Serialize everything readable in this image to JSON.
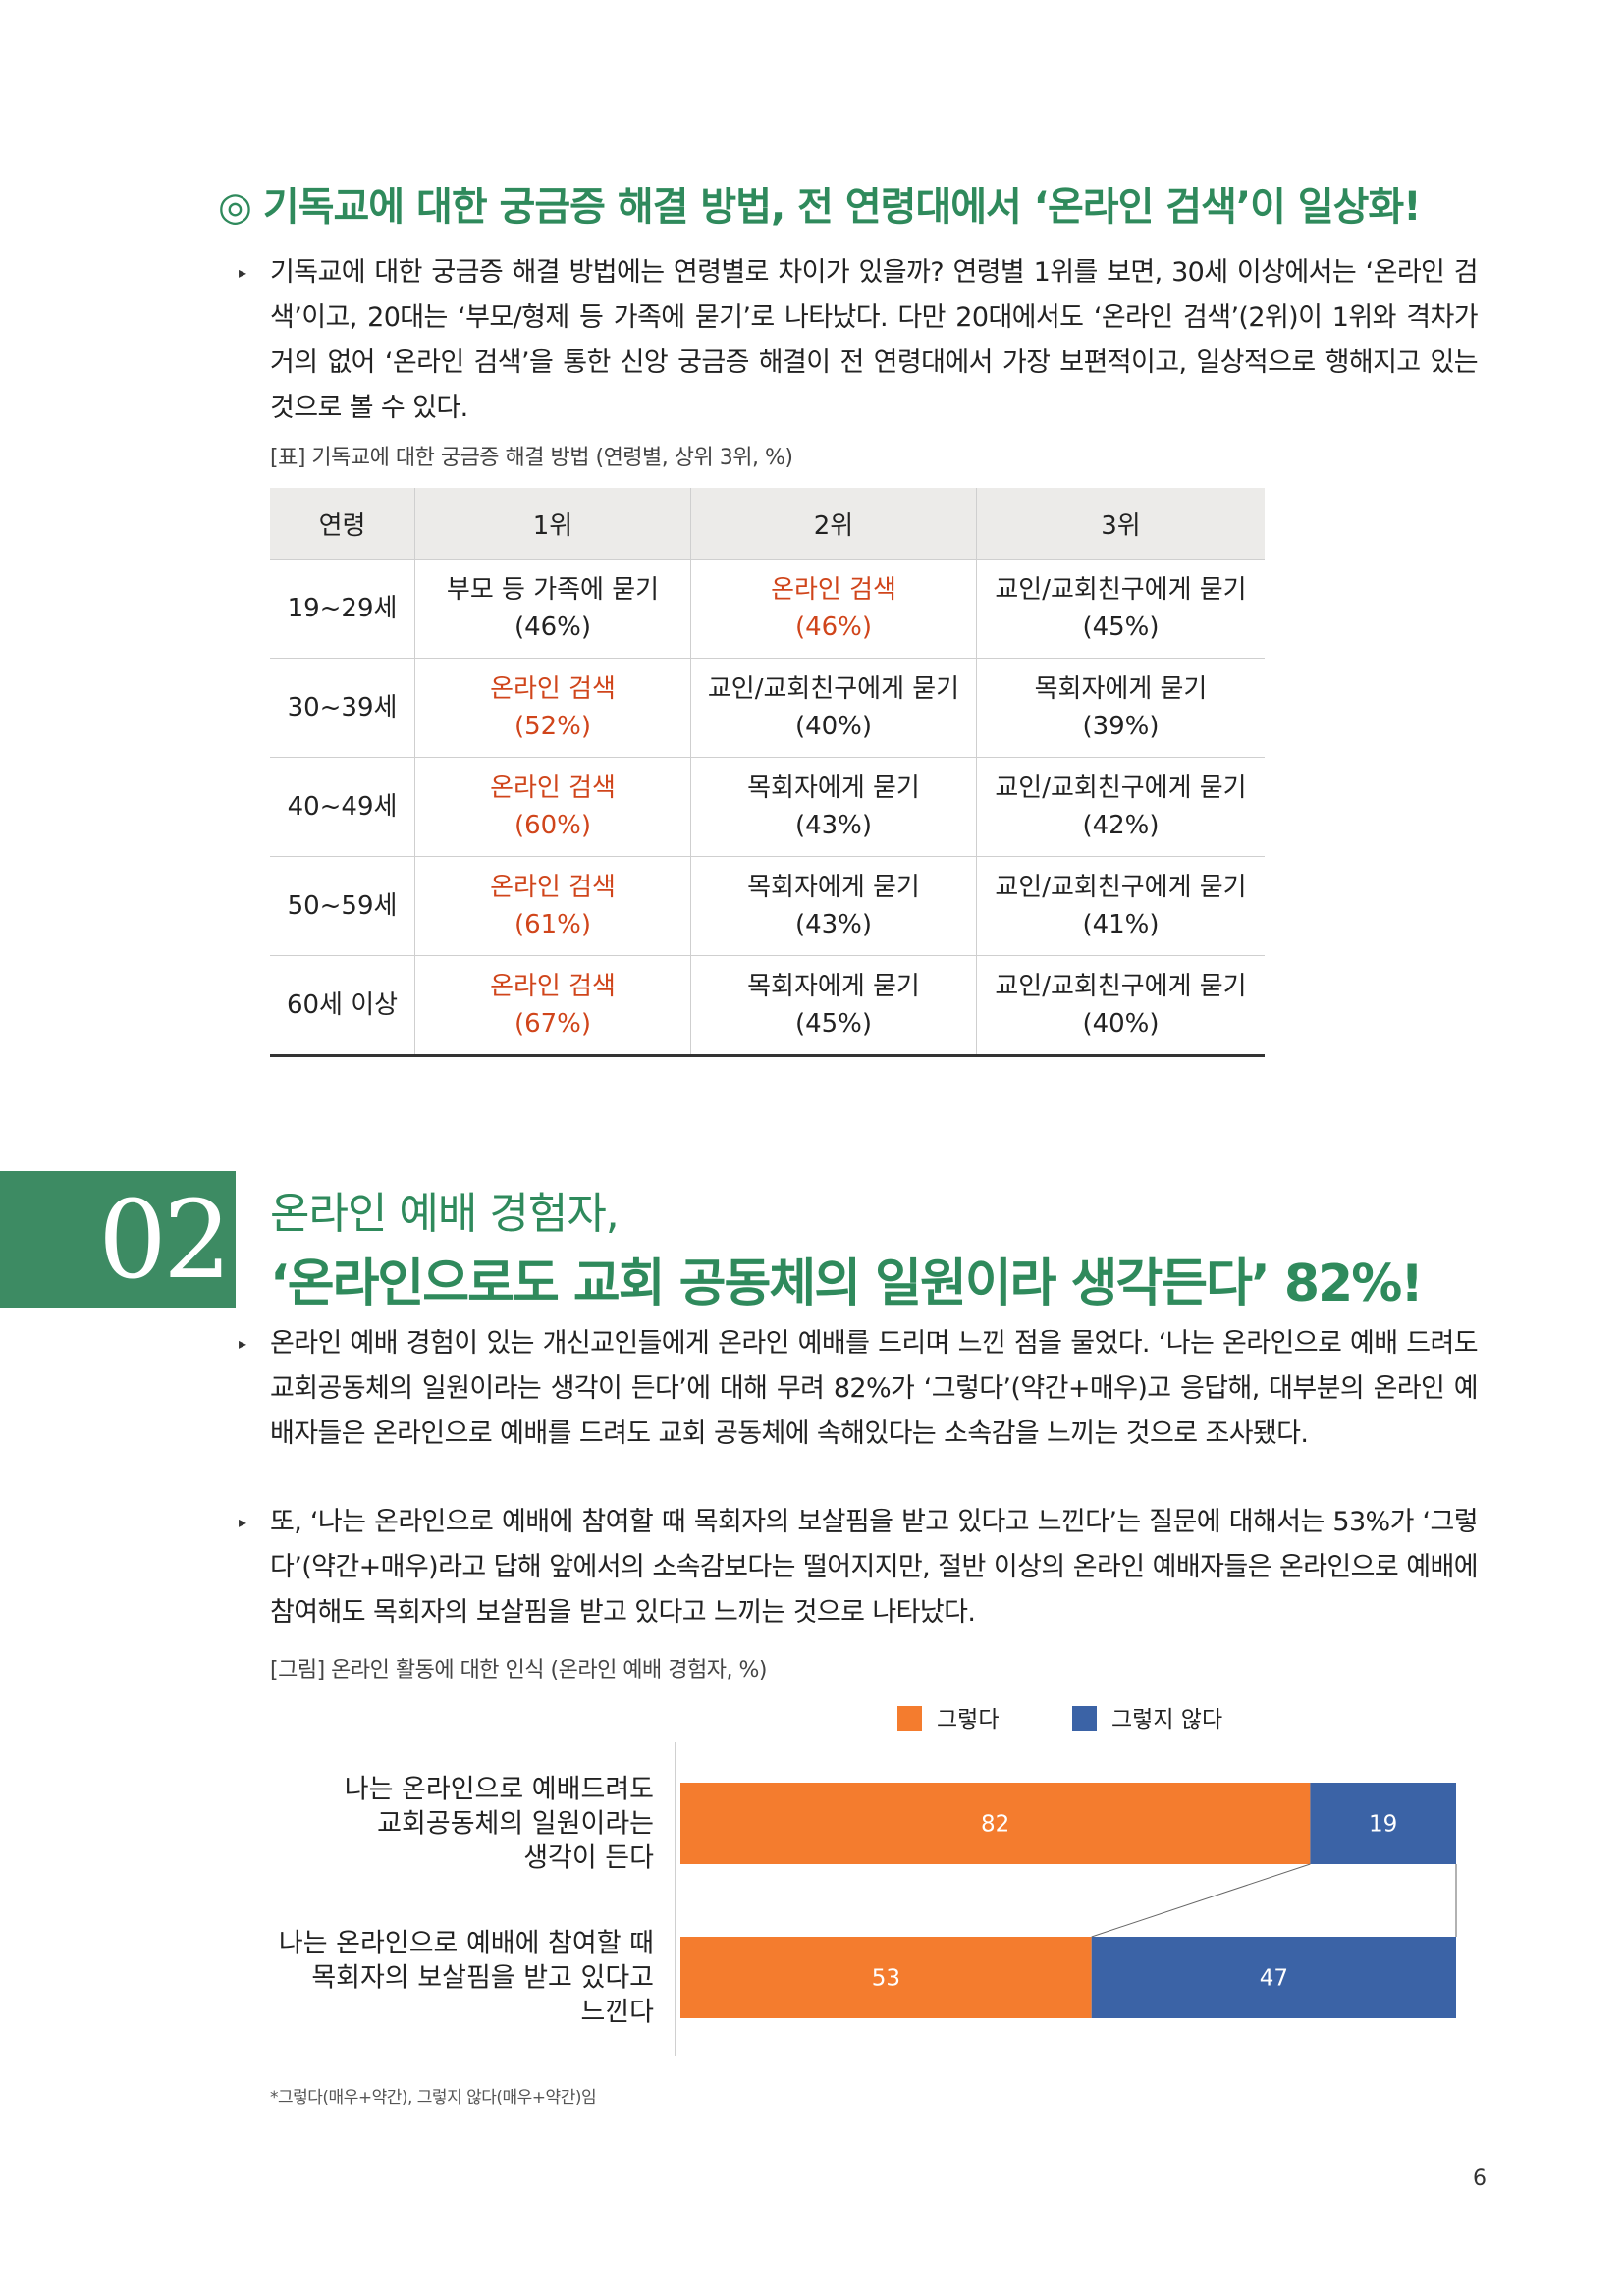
{
  "section1": {
    "title_symbol": "◎",
    "title": "기독교에 대한 궁금증 해결 방법, 전 연령대에서 ‘온라인 검색’이 일상화!",
    "bullet": "▸",
    "paragraph": "기독교에 대한 궁금증 해결 방법에는 연령별로 차이가 있을까? 연령별 1위를 보면, 30세 이상에서는 ‘온라인 검색’이고, 20대는 ‘부모/형제 등 가족에 묻기’로 나타났다. 다만 20대에서도 ‘온라인 검색’(2위)이 1위와 격차가 거의 없어 ‘온라인 검색’을 통한 신앙 궁금증 해결이 전 연령대에서 가장 보편적이고, 일상적으로 행해지고 있는 것으로 볼 수 있다.",
    "table_caption": "[표] 기독교에 대한 궁금증 해결 방법 (연령별, 상위 3위, %)",
    "table": {
      "headers": [
        "연령",
        "1위",
        "2위",
        "3위"
      ],
      "rows": [
        {
          "age": "19~29세",
          "r1": {
            "text": "부모 등 가족에 묻기",
            "pct": "(46%)",
            "hl": false
          },
          "r2": {
            "text": "온라인 검색",
            "pct": "(46%)",
            "hl": true
          },
          "r3": {
            "text": "교인/교회친구에게 묻기",
            "pct": "(45%)",
            "hl": false
          }
        },
        {
          "age": "30~39세",
          "r1": {
            "text": "온라인 검색",
            "pct": "(52%)",
            "hl": true
          },
          "r2": {
            "text": "교인/교회친구에게 묻기",
            "pct": "(40%)",
            "hl": false
          },
          "r3": {
            "text": "목회자에게 묻기",
            "pct": "(39%)",
            "hl": false
          }
        },
        {
          "age": "40~49세",
          "r1": {
            "text": "온라인 검색",
            "pct": "(60%)",
            "hl": true
          },
          "r2": {
            "text": "목회자에게 묻기",
            "pct": "(43%)",
            "hl": false
          },
          "r3": {
            "text": "교인/교회친구에게 묻기",
            "pct": "(42%)",
            "hl": false
          }
        },
        {
          "age": "50~59세",
          "r1": {
            "text": "온라인 검색",
            "pct": "(61%)",
            "hl": true
          },
          "r2": {
            "text": "목회자에게 묻기",
            "pct": "(43%)",
            "hl": false
          },
          "r3": {
            "text": "교인/교회친구에게 묻기",
            "pct": "(41%)",
            "hl": false
          }
        },
        {
          "age": "60세 이상",
          "r1": {
            "text": "온라인 검색",
            "pct": "(67%)",
            "hl": true
          },
          "r2": {
            "text": "목회자에게 묻기",
            "pct": "(45%)",
            "hl": false
          },
          "r3": {
            "text": "교인/교회친구에게 묻기",
            "pct": "(40%)",
            "hl": false
          }
        }
      ]
    }
  },
  "section2": {
    "number": "02",
    "title_line1": "온라인 예배 경험자,",
    "title_line2": "‘온라인으로도 교회 공동체의 일원이라 생각든다’ 82%!",
    "bullet": "▸",
    "paragraph1": "온라인 예배 경험이 있는 개신교인들에게 온라인 예배를 드리며 느낀 점을 물었다. ‘나는 온라인으로 예배 드려도 교회공동체의 일원이라는 생각이 든다’에 대해 무려 82%가 ‘그렇다’(약간+매우)고 응답해, 대부분의 온라인 예배자들은 온라인으로 예배를 드려도 교회 공동체에 속해있다는 소속감을 느끼는 것으로 조사됐다.",
    "paragraph2": "또, ‘나는 온라인으로 예배에 참여할 때 목회자의 보살핌을 받고 있다고 느낀다’는 질문에 대해서는 53%가 ‘그렇다’(약간+매우)라고 답해 앞에서의 소속감보다는 떨어지지만, 절반 이상의 온라인 예배자들은 온라인으로 예배에 참여해도 목회자의 보살핌을 받고 있다고 느끼는 것으로 나타났다.",
    "chart_caption": "[그림] 온라인 활동에 대한 인식 (온라인 예배 경험자, %)",
    "footnote": "*그렇다(매우+약간), 그렇지 않다(매우+약간)임"
  },
  "colors": {
    "accent_green": "#2f8a5c",
    "highlight_red": "#d0451b",
    "series_yes": "#f47c2e",
    "series_no": "#3b63a6"
  },
  "chart_data": {
    "type": "bar",
    "orientation": "horizontal",
    "stacked": true,
    "categories": [
      [
        "나는 온라인으로 예배드려도",
        "교회공동체의 일원이라는",
        "생각이 든다"
      ],
      [
        "나는 온라인으로 예배에 참여할 때",
        "목회자의 보살핌을 받고 있다고",
        "느낀다"
      ]
    ],
    "series": [
      {
        "name": "그렇다",
        "values": [
          82,
          53
        ]
      },
      {
        "name": "그렇지 않다",
        "values": [
          19,
          47
        ]
      }
    ],
    "legend_position": "top-right",
    "grid": false
  },
  "page_number": "6"
}
